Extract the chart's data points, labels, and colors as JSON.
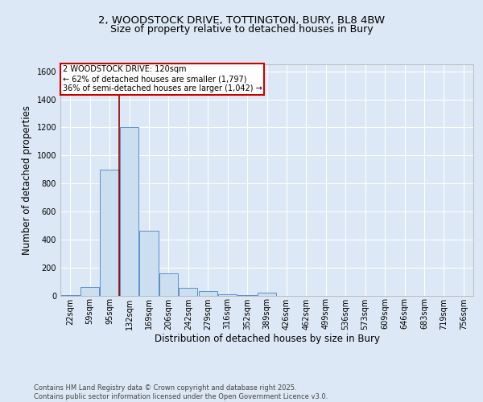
{
  "title_line1": "2, WOODSTOCK DRIVE, TOTTINGTON, BURY, BL8 4BW",
  "title_line2": "Size of property relative to detached houses in Bury",
  "xlabel": "Distribution of detached houses by size in Bury",
  "ylabel": "Number of detached properties",
  "bar_labels": [
    "22sqm",
    "59sqm",
    "95sqm",
    "132sqm",
    "169sqm",
    "206sqm",
    "242sqm",
    "279sqm",
    "316sqm",
    "352sqm",
    "389sqm",
    "426sqm",
    "462sqm",
    "499sqm",
    "536sqm",
    "573sqm",
    "609sqm",
    "646sqm",
    "683sqm",
    "719sqm",
    "756sqm"
  ],
  "bar_values": [
    5,
    60,
    900,
    1200,
    460,
    160,
    55,
    30,
    10,
    5,
    20,
    0,
    0,
    0,
    0,
    0,
    0,
    0,
    0,
    0,
    0
  ],
  "bar_color": "#ccdff0",
  "bar_edge_color": "#5b8fc9",
  "vline_x": 2.5,
  "vline_color": "#990000",
  "annotation_text": "2 WOODSTOCK DRIVE: 120sqm\n← 62% of detached houses are smaller (1,797)\n36% of semi-detached houses are larger (1,042) →",
  "annotation_box_color": "#ffffff",
  "annotation_edge_color": "#cc0000",
  "ylim": [
    0,
    1650
  ],
  "yticks": [
    0,
    200,
    400,
    600,
    800,
    1000,
    1200,
    1400,
    1600
  ],
  "bg_color": "#dce8f5",
  "plot_bg_color": "#dce8f5",
  "footer_text": "Contains HM Land Registry data © Crown copyright and database right 2025.\nContains public sector information licensed under the Open Government Licence v3.0.",
  "title_fontsize": 9.5,
  "subtitle_fontsize": 9,
  "tick_fontsize": 7,
  "label_fontsize": 8.5,
  "footer_fontsize": 6.0
}
